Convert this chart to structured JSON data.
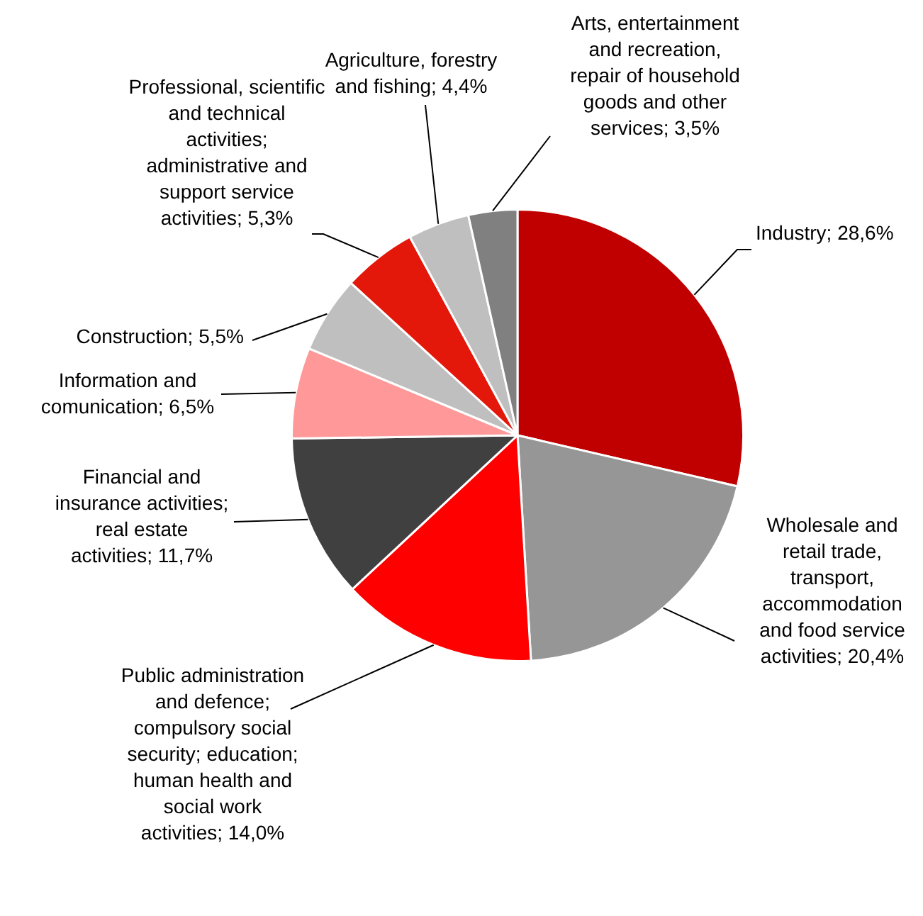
{
  "chart_data": {
    "type": "pie",
    "categories": [
      "Industry",
      "Wholesale and retail trade, transport, accommodation and food service activities",
      "Public administration and defence; compulsory social security; education; human health and social work activities",
      "Financial and insurance activities; real estate activities",
      "Information and comunication",
      "Construction",
      "Professional, scientific and technical activities; administrative and support service activities",
      "Agriculture, forestry and fishing",
      "Arts, entertainment and recreation, repair of household goods and other services"
    ],
    "values": [
      28.6,
      20.4,
      14.0,
      11.7,
      6.5,
      5.5,
      5.3,
      4.4,
      3.5
    ],
    "value_labels": [
      "28,6%",
      "20,4%",
      "14,0%",
      "11,7%",
      "6,5%",
      "5,5%",
      "5,3%",
      "4,4%",
      "3,5%"
    ],
    "colors": [
      "#c00000",
      "#969696",
      "#ff0000",
      "#404040",
      "#ff9999",
      "#bfbfbf",
      "#e3170a",
      "#bfbfbf",
      "#808080"
    ],
    "legend": false
  }
}
